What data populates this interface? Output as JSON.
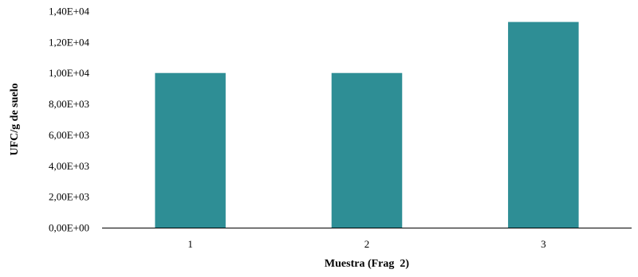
{
  "chart_data": {
    "type": "bar",
    "title": "",
    "xlabel": "Muestra (Frag  2)",
    "ylabel": "UFC/g de suelo",
    "categories": [
      "1",
      "2",
      "3"
    ],
    "values": [
      10000,
      10000,
      13300
    ],
    "ylim": [
      0,
      14000
    ],
    "yticks": [
      {
        "value": 0,
        "label": "0,00E+00"
      },
      {
        "value": 2000,
        "label": "2,00E+03"
      },
      {
        "value": 4000,
        "label": "4,00E+03"
      },
      {
        "value": 6000,
        "label": "6,00E+03"
      },
      {
        "value": 8000,
        "label": "8,00E+03"
      },
      {
        "value": 10000,
        "label": "1,00E+04"
      },
      {
        "value": 12000,
        "label": "1,20E+04"
      },
      {
        "value": 14000,
        "label": "1,40E+04"
      }
    ],
    "bar_color": "#2E8E95",
    "grid": false,
    "legend": "none"
  }
}
